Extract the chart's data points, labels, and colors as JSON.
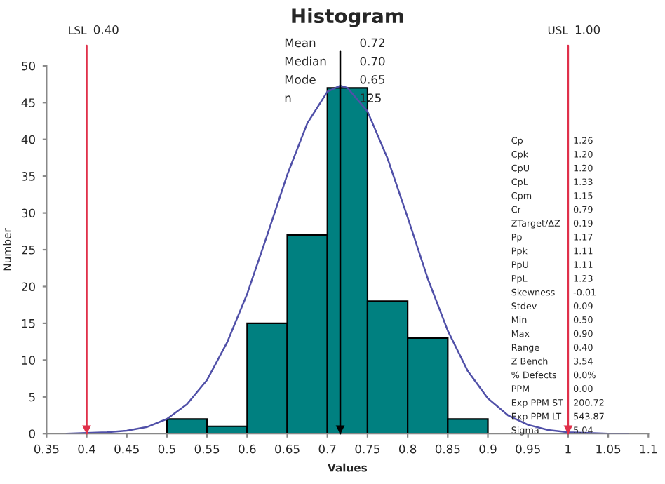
{
  "chart_data": {
    "type": "histogram",
    "title": "Histogram",
    "xlabel": "Values",
    "ylabel": "Number",
    "bins": [
      0.5,
      0.55,
      0.6,
      0.65,
      0.7,
      0.75,
      0.8,
      0.85,
      0.9
    ],
    "values": [
      2,
      1,
      15,
      27,
      47,
      18,
      13,
      2
    ],
    "color": "#008080",
    "series": [
      {
        "type": "line",
        "color": "#5050a8",
        "x": [
          0.375,
          0.4,
          0.425,
          0.45,
          0.475,
          0.5,
          0.525,
          0.55,
          0.575,
          0.6,
          0.625,
          0.65,
          0.675,
          0.7,
          0.716,
          0.725,
          0.75,
          0.775,
          0.8,
          0.825,
          0.85,
          0.875,
          0.9,
          0.925,
          0.95,
          0.975,
          1.0,
          1.025,
          1.05,
          1.075
        ],
        "values": [
          0,
          0.1,
          0.2,
          0.4,
          0.9,
          2,
          4,
          7.3,
          12.4,
          19,
          27,
          35.2,
          42.2,
          46.5,
          47.3,
          47,
          43.8,
          37.4,
          29.4,
          21.1,
          14,
          8.5,
          4.8,
          2.5,
          1.2,
          0.5,
          0.2,
          0.1,
          0,
          0
        ]
      }
    ],
    "xlim": [
      0.35,
      1.1
    ],
    "xticks": [
      0.35,
      0.4,
      0.45,
      0.5,
      0.55,
      0.6,
      0.65,
      0.7,
      0.75,
      0.8,
      0.85,
      0.9,
      0.95,
      1,
      1.05,
      1.1
    ],
    "ylim": [
      0,
      50
    ],
    "yticks": [
      0,
      5,
      10,
      15,
      20,
      25,
      30,
      35,
      40,
      45,
      50
    ],
    "grid": false,
    "legend": false,
    "ref_lines": [
      {
        "axis": "x",
        "value": 0.4,
        "label": "LSL\t0.40",
        "color": "#e0304a"
      },
      {
        "axis": "x",
        "value": 1.0,
        "label": "USL\t1.00",
        "color": "#e0304a"
      },
      {
        "axis": "x",
        "value": 0.716,
        "color": "#000000"
      }
    ],
    "annotations": [
      "Mean\t0.72",
      "Median\t0.70",
      "Mode\t0.65",
      "n\t125",
      "Cp\t1.26",
      "Cpk\t1.20",
      "CpU\t1.20",
      "CpL\t1.33",
      "Cpm\t1.15",
      "Cr\t0.79",
      "ZTarget/ΔZ\t0.19",
      "Pp\t1.17",
      "Ppk\t1.11",
      "PpU\t1.11",
      "PpL\t1.23",
      "Skewness\t-0.01",
      "Stdev\t0.09",
      "Min\t0.50",
      "Max\t0.90",
      "Range\t0.40",
      "Z Bench\t3.54",
      "% Defects\t0.0%",
      "PPM\t0.00",
      "Exp PPM ST\t200.72",
      "Exp PPM LT\t543.87",
      "Sigma\t5.04"
    ]
  }
}
